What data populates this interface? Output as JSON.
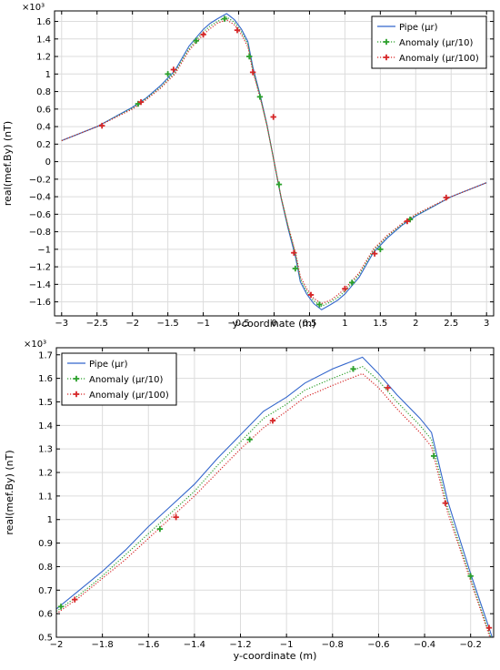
{
  "chart_data": [
    {
      "type": "line",
      "exponent_label": "×10³",
      "xlabel": "y-coordinate (m)",
      "ylabel": "real(mef.By) (nT)",
      "xlim": [
        -3.1,
        3.1
      ],
      "ylim": [
        -1.76,
        1.72
      ],
      "x_ticks": [
        -3,
        -2.5,
        -2,
        -1.5,
        -1,
        -0.5,
        0,
        0.5,
        1,
        1.5,
        2,
        2.5,
        3
      ],
      "x_tick_labels": [
        "−3",
        "−2.5",
        "−2",
        "−1.5",
        "−1",
        "−0.5",
        "0",
        "0.5",
        "1",
        "1.5",
        "2",
        "2.5",
        "3"
      ],
      "y_ticks": [
        -1.6,
        -1.4,
        -1.2,
        -1,
        -0.8,
        -0.6,
        -0.4,
        -0.2,
        0,
        0.2,
        0.4,
        0.6,
        0.8,
        1,
        1.2,
        1.4,
        1.6
      ],
      "y_tick_labels": [
        "−1.6",
        "−1.4",
        "−1.2",
        "−1",
        "−0.8",
        "−0.6",
        "−0.4",
        "−0.2",
        "0",
        "0.2",
        "0.4",
        "0.6",
        "0.8",
        "1",
        "1.2",
        "1.4",
        "1.6"
      ],
      "grid": true,
      "legend_position": "top-right",
      "series": [
        {
          "name": "Pipe (μr)",
          "color": "#3366cc",
          "style": "solid",
          "marker": "none",
          "x": [
            -3,
            -2.5,
            -2,
            -1.8,
            -1.6,
            -1.4,
            -1.2,
            -1,
            -0.9,
            -0.8,
            -0.67,
            -0.56,
            -0.46,
            -0.37,
            -0.3,
            -0.2,
            -0.1,
            0,
            0.1,
            0.2,
            0.3,
            0.37,
            0.46,
            0.56,
            0.67,
            0.8,
            0.9,
            1,
            1.2,
            1.4,
            1.6,
            1.8,
            2,
            2.5,
            3
          ],
          "y": [
            0.24,
            0.4,
            0.62,
            0.73,
            0.87,
            1.04,
            1.32,
            1.51,
            1.58,
            1.63,
            1.69,
            1.62,
            1.51,
            1.37,
            1.08,
            0.77,
            0.42,
            0,
            -0.42,
            -0.77,
            -1.08,
            -1.37,
            -1.51,
            -1.62,
            -1.69,
            -1.63,
            -1.58,
            -1.51,
            -1.32,
            -1.04,
            -0.87,
            -0.73,
            -0.62,
            -0.4,
            -0.24
          ]
        },
        {
          "name": "Anomaly (μr/10)",
          "color": "#2ca02c",
          "style": "dotted",
          "marker": "plus",
          "x": [
            -3,
            -2.5,
            -2,
            -1.8,
            -1.6,
            -1.4,
            -1.2,
            -1,
            -0.9,
            -0.8,
            -0.67,
            -0.56,
            -0.46,
            -0.37,
            -0.3,
            -0.2,
            -0.1,
            0,
            0.1,
            0.2,
            0.3,
            0.37,
            0.46,
            0.56,
            0.67,
            0.8,
            0.9,
            1,
            1.2,
            1.4,
            1.6,
            1.8,
            2,
            2.5,
            3
          ],
          "y": [
            0.24,
            0.4,
            0.61,
            0.72,
            0.85,
            1.02,
            1.29,
            1.48,
            1.55,
            1.6,
            1.65,
            1.59,
            1.48,
            1.34,
            1.05,
            0.75,
            0.41,
            0,
            -0.41,
            -0.75,
            -1.05,
            -1.34,
            -1.48,
            -1.59,
            -1.65,
            -1.6,
            -1.55,
            -1.48,
            -1.29,
            -1.02,
            -0.85,
            -0.72,
            -0.61,
            -0.4,
            -0.24
          ],
          "marker_x": [
            -1.92,
            -1.5,
            -1.1,
            -0.7,
            -0.35,
            -0.2,
            0.07,
            0.3,
            0.64,
            1.1,
            1.5,
            1.92
          ],
          "marker_y": [
            0.66,
            1.0,
            1.38,
            1.63,
            1.2,
            0.74,
            -0.26,
            -1.22,
            -1.63,
            -1.38,
            -1.0,
            -0.66
          ]
        },
        {
          "name": "Anomaly (μr/100)",
          "color": "#d62728",
          "style": "dotted",
          "marker": "plus",
          "x": [
            -3,
            -2.5,
            -2,
            -1.8,
            -1.6,
            -1.4,
            -1.2,
            -1,
            -0.9,
            -0.8,
            -0.67,
            -0.56,
            -0.46,
            -0.37,
            -0.3,
            -0.2,
            -0.1,
            0,
            0.1,
            0.2,
            0.3,
            0.37,
            0.46,
            0.56,
            0.67,
            0.8,
            0.9,
            1,
            1.2,
            1.4,
            1.6,
            1.8,
            2,
            2.5,
            3
          ],
          "y": [
            0.24,
            0.4,
            0.6,
            0.71,
            0.84,
            1.0,
            1.27,
            1.45,
            1.52,
            1.58,
            1.62,
            1.56,
            1.45,
            1.31,
            1.03,
            0.74,
            0.41,
            0,
            -0.41,
            -0.74,
            -1.03,
            -1.31,
            -1.45,
            -1.56,
            -1.62,
            -1.58,
            -1.52,
            -1.45,
            -1.27,
            -1.0,
            -0.84,
            -0.71,
            -0.6,
            -0.4,
            -0.24
          ],
          "marker_x": [
            -2.43,
            -1.88,
            -1.42,
            -1.0,
            -0.52,
            -0.3,
            -0.01,
            0.28,
            0.52,
            1.0,
            1.42,
            1.88,
            2.43
          ],
          "marker_y": [
            0.41,
            0.68,
            1.05,
            1.45,
            1.5,
            1.02,
            0.51,
            -1.04,
            -1.52,
            -1.45,
            -1.05,
            -0.68,
            -0.41
          ]
        }
      ]
    },
    {
      "type": "line",
      "exponent_label": "×10³",
      "xlabel": "y-coordinate (m)",
      "ylabel": "real(mef.By) (nT)",
      "xlim": [
        -2.0,
        -0.1
      ],
      "ylim": [
        0.5,
        1.73
      ],
      "x_ticks": [
        -2,
        -1.8,
        -1.6,
        -1.4,
        -1.2,
        -1,
        -0.8,
        -0.6,
        -0.4,
        -0.2
      ],
      "x_tick_labels": [
        "−2",
        "−1.8",
        "−1.6",
        "−1.4",
        "−1.2",
        "−1",
        "−0.8",
        "−0.6",
        "−0.4",
        "−0.2"
      ],
      "y_ticks": [
        0.5,
        0.6,
        0.7,
        0.8,
        0.9,
        1,
        1.1,
        1.2,
        1.3,
        1.4,
        1.5,
        1.6,
        1.7
      ],
      "y_tick_labels": [
        "0.5",
        "0.6",
        "0.7",
        "0.8",
        "0.9",
        "1",
        "1.1",
        "1.2",
        "1.3",
        "1.4",
        "1.5",
        "1.6",
        "1.7"
      ],
      "grid": true,
      "legend_position": "top-left",
      "series": [
        {
          "name": "Pipe (μr)",
          "color": "#3366cc",
          "style": "solid",
          "marker": "none",
          "x": [
            -2,
            -1.9,
            -1.8,
            -1.7,
            -1.6,
            -1.5,
            -1.4,
            -1.3,
            -1.2,
            -1.1,
            -1.0,
            -0.92,
            -0.8,
            -0.67,
            -0.6,
            -0.52,
            -0.46,
            -0.42,
            -0.37,
            -0.3,
            -0.2,
            -0.12,
            -0.1
          ],
          "y": [
            0.62,
            0.7,
            0.78,
            0.87,
            0.97,
            1.06,
            1.15,
            1.26,
            1.36,
            1.46,
            1.52,
            1.58,
            1.64,
            1.69,
            1.62,
            1.53,
            1.47,
            1.43,
            1.37,
            1.08,
            0.77,
            0.54,
            0.48
          ]
        },
        {
          "name": "Anomaly (μr/10)",
          "color": "#2ca02c",
          "style": "dotted",
          "marker": "plus",
          "x": [
            -2,
            -1.9,
            -1.8,
            -1.7,
            -1.6,
            -1.5,
            -1.4,
            -1.3,
            -1.2,
            -1.1,
            -1.0,
            -0.92,
            -0.8,
            -0.67,
            -0.6,
            -0.52,
            -0.46,
            -0.42,
            -0.37,
            -0.3,
            -0.2,
            -0.12,
            -0.1
          ],
          "y": [
            0.61,
            0.68,
            0.76,
            0.85,
            0.94,
            1.03,
            1.12,
            1.23,
            1.33,
            1.43,
            1.49,
            1.55,
            1.6,
            1.65,
            1.59,
            1.5,
            1.44,
            1.4,
            1.34,
            1.05,
            0.75,
            0.52,
            0.47
          ],
          "marker_x": [
            -1.98,
            -1.55,
            -1.16,
            -0.71,
            -0.36,
            -0.2
          ],
          "marker_y": [
            0.63,
            0.96,
            1.34,
            1.64,
            1.27,
            0.76
          ]
        },
        {
          "name": "Anomaly (μr/100)",
          "color": "#d62728",
          "style": "dotted",
          "marker": "plus",
          "x": [
            -2,
            -1.9,
            -1.8,
            -1.7,
            -1.6,
            -1.5,
            -1.4,
            -1.3,
            -1.2,
            -1.1,
            -1.0,
            -0.92,
            -0.8,
            -0.67,
            -0.6,
            -0.52,
            -0.46,
            -0.42,
            -0.37,
            -0.3,
            -0.2,
            -0.12,
            -0.1
          ],
          "y": [
            0.6,
            0.67,
            0.75,
            0.83,
            0.92,
            1.01,
            1.1,
            1.2,
            1.3,
            1.39,
            1.46,
            1.52,
            1.57,
            1.62,
            1.56,
            1.47,
            1.41,
            1.37,
            1.31,
            1.03,
            0.74,
            0.51,
            0.46
          ],
          "marker_x": [
            -1.92,
            -1.48,
            -1.06,
            -0.56,
            -0.31,
            -0.12
          ],
          "marker_y": [
            0.66,
            1.01,
            1.42,
            1.56,
            1.07,
            0.54
          ]
        }
      ]
    }
  ]
}
